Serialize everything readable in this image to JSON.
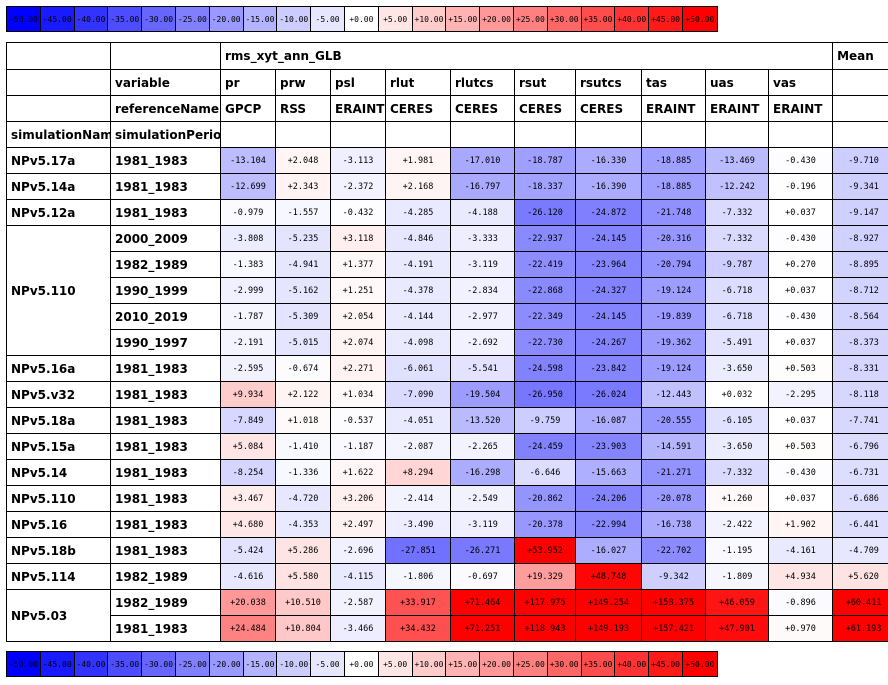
{
  "colorbar": {
    "ticks": [
      "-50.00",
      "-45.00",
      "-40.00",
      "-35.00",
      "-30.00",
      "-25.00",
      "-20.00",
      "-15.00",
      "-10.00",
      "-5.00",
      "+0.00",
      "+5.00",
      "+10.00",
      "+15.00",
      "+20.00",
      "+25.00",
      "+30.00",
      "+35.00",
      "+40.00",
      "+45.00",
      "+50.00"
    ],
    "min": -50,
    "max": 50,
    "negative_color": "#0000ff",
    "neutral_color": "#ffffff",
    "positive_color": "#ff0000"
  },
  "chart_data": {
    "type": "table",
    "title": "rms_xyt_ann_GLB",
    "mean_label": "Mean",
    "row_labels": {
      "variable": "variable",
      "referenceName": "referenceName",
      "simulationName": "simulationName",
      "simulationPeriod": "simulationPeriod"
    },
    "variables": [
      "pr",
      "prw",
      "psl",
      "rlut",
      "rlutcs",
      "rsut",
      "rsutcs",
      "tas",
      "uas",
      "vas"
    ],
    "references": [
      "GPCP",
      "RSS",
      "ERAINT",
      "CERES",
      "CERES",
      "CERES",
      "CERES",
      "ERAINT",
      "ERAINT",
      "ERAINT"
    ],
    "groups": [
      {
        "name": "NPv5.17a",
        "rows": [
          {
            "period": "1981_1983",
            "values": [
              "-13.104",
              "+2.048",
              "-3.113",
              "+1.981",
              "-17.010",
              "-18.787",
              "-16.330",
              "-18.885",
              "-13.469",
              "-0.430"
            ],
            "mean": "-9.710"
          }
        ]
      },
      {
        "name": "NPv5.14a",
        "rows": [
          {
            "period": "1981_1983",
            "values": [
              "-12.699",
              "+2.343",
              "-2.372",
              "+2.168",
              "-16.797",
              "-18.337",
              "-16.390",
              "-18.885",
              "-12.242",
              "-0.196"
            ],
            "mean": "-9.341"
          }
        ]
      },
      {
        "name": "NPv5.12a",
        "rows": [
          {
            "period": "1981_1983",
            "values": [
              "-0.979",
              "-1.557",
              "-0.432",
              "-4.285",
              "-4.188",
              "-26.120",
              "-24.872",
              "-21.748",
              "-7.332",
              "+0.037"
            ],
            "mean": "-9.147"
          }
        ]
      },
      {
        "name": "NPv5.110",
        "rows": [
          {
            "period": "2000_2009",
            "values": [
              "-3.808",
              "-5.235",
              "+3.118",
              "-4.846",
              "-3.333",
              "-22.937",
              "-24.145",
              "-20.316",
              "-7.332",
              "-0.430"
            ],
            "mean": "-8.927"
          },
          {
            "period": "1982_1989",
            "values": [
              "-1.383",
              "-4.941",
              "+1.377",
              "-4.191",
              "-3.119",
              "-22.419",
              "-23.964",
              "-20.794",
              "-9.787",
              "+0.270"
            ],
            "mean": "-8.895"
          },
          {
            "period": "1990_1999",
            "values": [
              "-2.999",
              "-5.162",
              "+1.251",
              "-4.378",
              "-2.834",
              "-22.868",
              "-24.327",
              "-19.124",
              "-6.718",
              "+0.037"
            ],
            "mean": "-8.712"
          },
          {
            "period": "2010_2019",
            "values": [
              "-1.787",
              "-5.309",
              "+2.054",
              "-4.144",
              "-2.977",
              "-22.349",
              "-24.145",
              "-19.839",
              "-6.718",
              "-0.430"
            ],
            "mean": "-8.564"
          },
          {
            "period": "1990_1997",
            "values": [
              "-2.191",
              "-5.015",
              "+2.074",
              "-4.098",
              "-2.692",
              "-22.730",
              "-24.267",
              "-19.362",
              "-5.491",
              "+0.037"
            ],
            "mean": "-8.373"
          }
        ]
      },
      {
        "name": "NPv5.16a",
        "rows": [
          {
            "period": "1981_1983",
            "values": [
              "-2.595",
              "-0.674",
              "+2.271",
              "-6.061",
              "-5.541",
              "-24.598",
              "-23.842",
              "-19.124",
              "-3.650",
              "+0.503"
            ],
            "mean": "-8.331"
          }
        ]
      },
      {
        "name": "NPv5.v32",
        "rows": [
          {
            "period": "1981_1983",
            "values": [
              "+9.934",
              "+2.122",
              "+1.034",
              "-7.090",
              "-19.504",
              "-26.950",
              "-26.024",
              "-12.443",
              "+0.032",
              "-2.295"
            ],
            "mean": "-8.118"
          }
        ]
      },
      {
        "name": "NPv5.18a",
        "rows": [
          {
            "period": "1981_1983",
            "values": [
              "-7.849",
              "+1.018",
              "-0.537",
              "-4.051",
              "-13.520",
              "-9.759",
              "-16.087",
              "-20.555",
              "-6.105",
              "+0.037"
            ],
            "mean": "-7.741"
          }
        ]
      },
      {
        "name": "NPv5.15a",
        "rows": [
          {
            "period": "1981_1983",
            "values": [
              "+5.084",
              "-1.410",
              "-1.187",
              "-2.087",
              "-2.265",
              "-24.459",
              "-23.903",
              "-14.591",
              "-3.650",
              "+0.503"
            ],
            "mean": "-6.796"
          }
        ]
      },
      {
        "name": "NPv5.14",
        "rows": [
          {
            "period": "1981_1983",
            "values": [
              "-8.254",
              "-1.336",
              "+1.622",
              "+8.294",
              "-16.298",
              "-6.646",
              "-15.663",
              "-21.271",
              "-7.332",
              "-0.430"
            ],
            "mean": "-6.731"
          }
        ]
      },
      {
        "name": "NPv5.110",
        "rows": [
          {
            "period": "1981_1983",
            "values": [
              "+3.467",
              "-4.720",
              "+3.206",
              "-2.414",
              "-2.549",
              "-20.862",
              "-24.206",
              "-20.078",
              "+1.260",
              "+0.037"
            ],
            "mean": "-6.686"
          }
        ]
      },
      {
        "name": "NPv5.16",
        "rows": [
          {
            "period": "1981_1983",
            "values": [
              "+4.680",
              "-4.353",
              "+2.497",
              "-3.490",
              "-3.119",
              "-20.378",
              "-22.994",
              "-16.738",
              "-2.422",
              "+1.902"
            ],
            "mean": "-6.441"
          }
        ]
      },
      {
        "name": "NPv5.18b",
        "rows": [
          {
            "period": "1981_1983",
            "values": [
              "-5.424",
              "+5.286",
              "-2.696",
              "-27.851",
              "-26.271",
              "+53.952",
              "-16.027",
              "-22.702",
              "-1.195",
              "-4.161"
            ],
            "mean": "-4.709"
          }
        ]
      },
      {
        "name": "NPv5.114",
        "rows": [
          {
            "period": "1982_1989",
            "values": [
              "-4.616",
              "+5.580",
              "-4.115",
              "-1.806",
              "-0.697",
              "+19.329",
              "+48.748",
              "-9.342",
              "-1.809",
              "+4.934"
            ],
            "mean": "+5.620"
          }
        ]
      },
      {
        "name": "NPv5.03",
        "rows": [
          {
            "period": "1982_1989",
            "values": [
              "+20.038",
              "+10.510",
              "-2.587",
              "+33.917",
              "+71.464",
              "+117.975",
              "+149.254",
              "+158.375",
              "+46.059",
              "-0.896"
            ],
            "mean": "+60.411"
          },
          {
            "period": "1981_1983",
            "values": [
              "+24.484",
              "+10.804",
              "-3.466",
              "+34.432",
              "+71.251",
              "+118.943",
              "+149.193",
              "+157.421",
              "+47.901",
              "+0.970"
            ],
            "mean": "+61.193"
          }
        ]
      }
    ]
  }
}
